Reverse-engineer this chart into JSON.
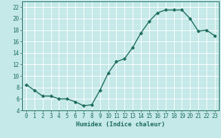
{
  "x": [
    0,
    1,
    2,
    3,
    4,
    5,
    6,
    7,
    8,
    9,
    10,
    11,
    12,
    13,
    14,
    15,
    16,
    17,
    18,
    19,
    20,
    21,
    22,
    23
  ],
  "y": [
    8.5,
    7.5,
    6.5,
    6.5,
    6.0,
    6.0,
    5.5,
    4.8,
    5.0,
    7.5,
    10.5,
    12.5,
    13.0,
    15.0,
    17.5,
    19.5,
    21.0,
    21.5,
    21.5,
    21.5,
    20.0,
    17.8,
    18.0,
    17.0
  ],
  "line_color": "#1a6b5a",
  "marker": "D",
  "marker_size": 2.5,
  "bg_color": "#c5e8e8",
  "grid_major_color": "#ffffff",
  "grid_minor_color": "#daf0f0",
  "xlabel": "Humidex (Indice chaleur)",
  "ylim": [
    4,
    23
  ],
  "xlim": [
    -0.5,
    23.5
  ],
  "yticks": [
    4,
    6,
    8,
    10,
    12,
    14,
    16,
    18,
    20,
    22
  ],
  "xticks": [
    0,
    1,
    2,
    3,
    4,
    5,
    6,
    7,
    8,
    9,
    10,
    11,
    12,
    13,
    14,
    15,
    16,
    17,
    18,
    19,
    20,
    21,
    22,
    23
  ],
  "label_fontsize": 6.5,
  "tick_fontsize": 5.5,
  "line_width": 1.0
}
